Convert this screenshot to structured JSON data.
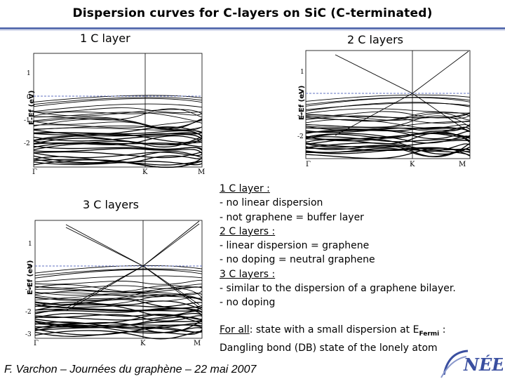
{
  "title": "Dispersion curves for C-layers on SiC (C-terminated)",
  "plots": {
    "one_layer": {
      "label": "1 C layer",
      "ylabel": "E-Ef (eV)",
      "yticks": [
        "1",
        "0",
        "-1",
        "-2"
      ],
      "xticks": [
        "Γ",
        "K",
        "M"
      ]
    },
    "two_layers": {
      "label": "2 C layers",
      "ylabel": "E-Ef (eV)",
      "yticks": [
        "1",
        "0",
        "-1",
        "-2"
      ],
      "xticks": [
        "Γ",
        "K",
        "M"
      ]
    },
    "three_layers": {
      "label": "3 C layers",
      "ylabel": "E-Ef (eV)",
      "yticks": [
        "1",
        "0",
        "-1",
        "-2",
        "-3"
      ],
      "xticks": [
        "Γ",
        "K",
        "M"
      ]
    }
  },
  "notes": {
    "h1": "1 C layer :",
    "l1": "- no linear dispersion",
    "l2": "- not graphene = buffer layer",
    "h2": "2 C layers :",
    "l3": "- linear dispersion = graphene",
    "l4": "- no doping = neutral graphene",
    "h3": "3 C layers :",
    "l5": "- similar to the dispersion of a graphene bilayer.",
    "l6": "- no doping"
  },
  "bottom_note": {
    "for_all": "For all",
    "text1": ": state with a small dispersion at E",
    "sub": "Fermi",
    "text1_end": " :",
    "line2": "Dangling bond (DB) state of the lonely atom"
  },
  "footer": "F. Varchon – Journées du graphène – 22 mai 2007",
  "logo_text": "NÉEL"
}
